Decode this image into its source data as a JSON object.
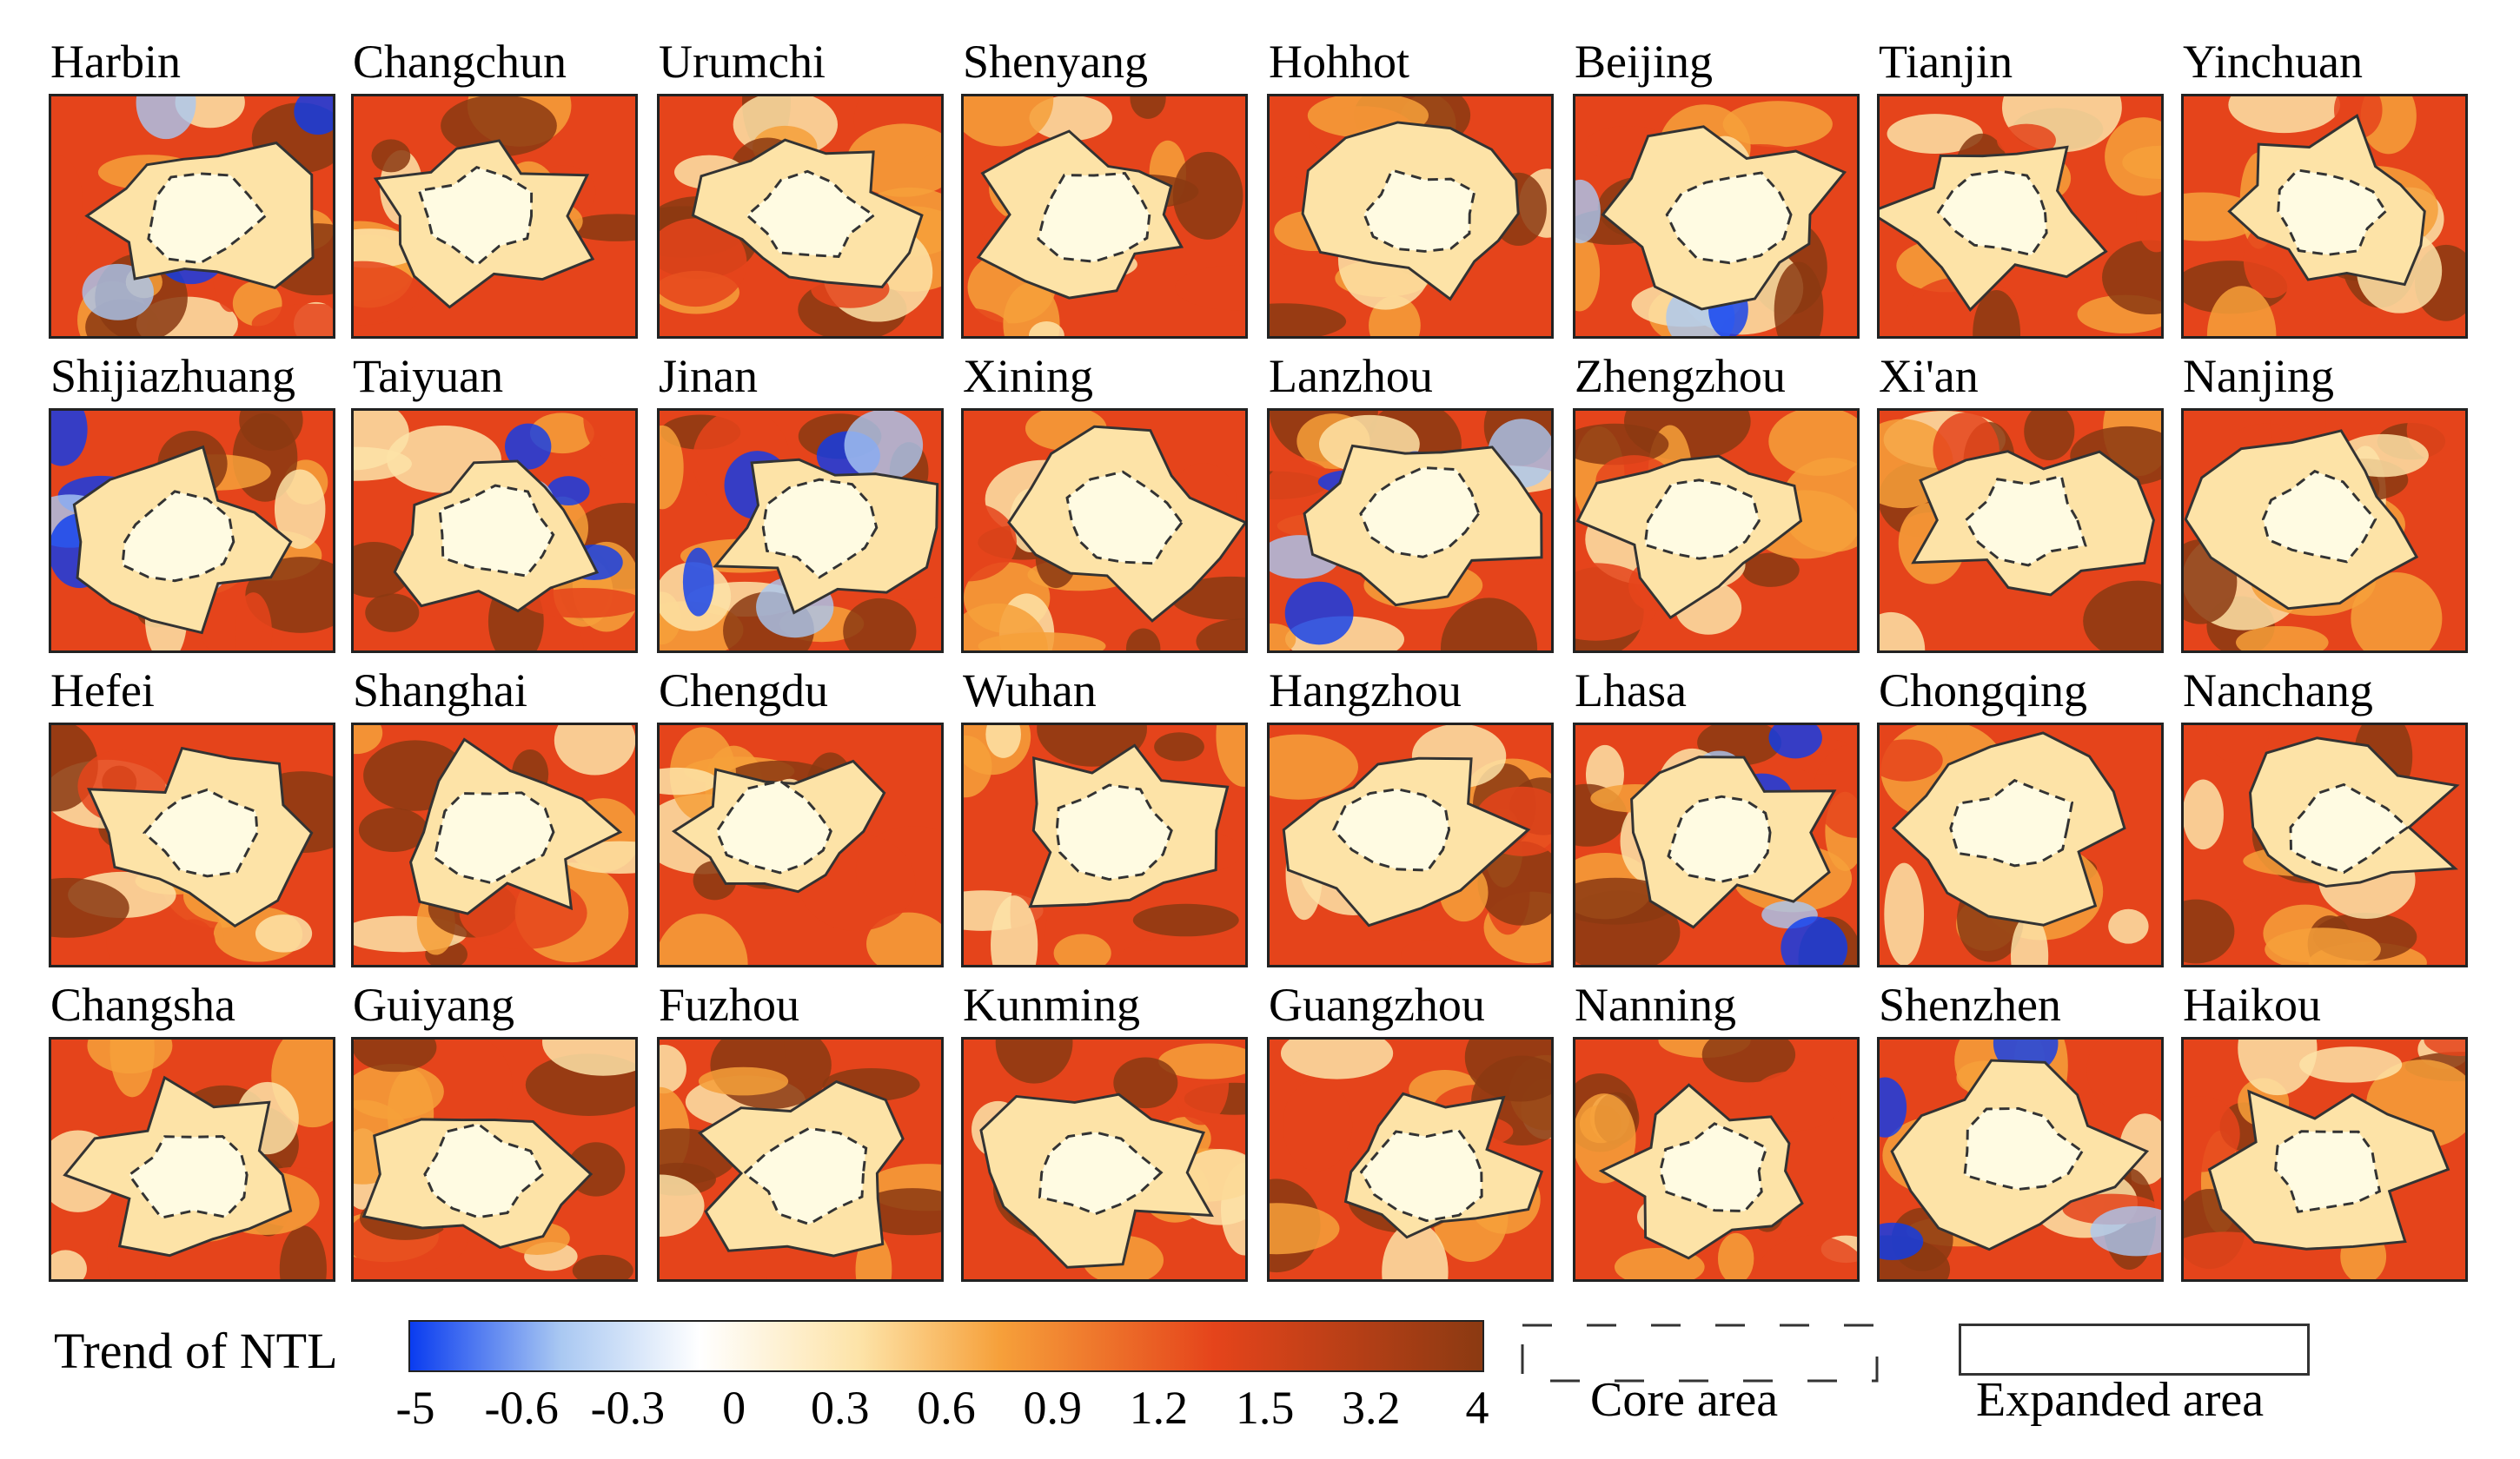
{
  "cities": [
    "Harbin",
    "Changchun",
    "Urumchi",
    "Shenyang",
    "Hohhot",
    "Beijing",
    "Tianjin",
    "Yinchuan",
    "Shijiazhuang",
    "Taiyuan",
    "Jinan",
    "Xining",
    "Lanzhou",
    "Zhengzhou",
    "Xi'an",
    "Nanjing",
    "Hefei",
    "Shanghai",
    "Chengdu",
    "Wuhan",
    "Hangzhou",
    "Lhasa",
    "Chongqing",
    "Nanchang",
    "Changsha",
    "Guiyang",
    "Fuzhou",
    "Kunming",
    "Guangzhou",
    "Nanning",
    "Shenzhen",
    "Haikou"
  ],
  "legend": {
    "title": "Trend of NTL",
    "ticks": [
      "-5",
      "-0.6",
      "-0.3",
      "0",
      "0.3",
      "0.6",
      "0.9",
      "1.2",
      "1.5",
      "3.2",
      "4"
    ],
    "core_label": "Core area",
    "expanded_label": "Expanded area"
  },
  "colors": {
    "strong_decrease": "#0a3cf0",
    "decrease": "#a9c8f2",
    "neutral": "#ffffff",
    "low_increase": "#fde3a7",
    "mid_increase": "#f6a03a",
    "high_increase": "#e5441b",
    "max_increase": "#8b3a12",
    "core_center": "#fffbe2"
  }
}
